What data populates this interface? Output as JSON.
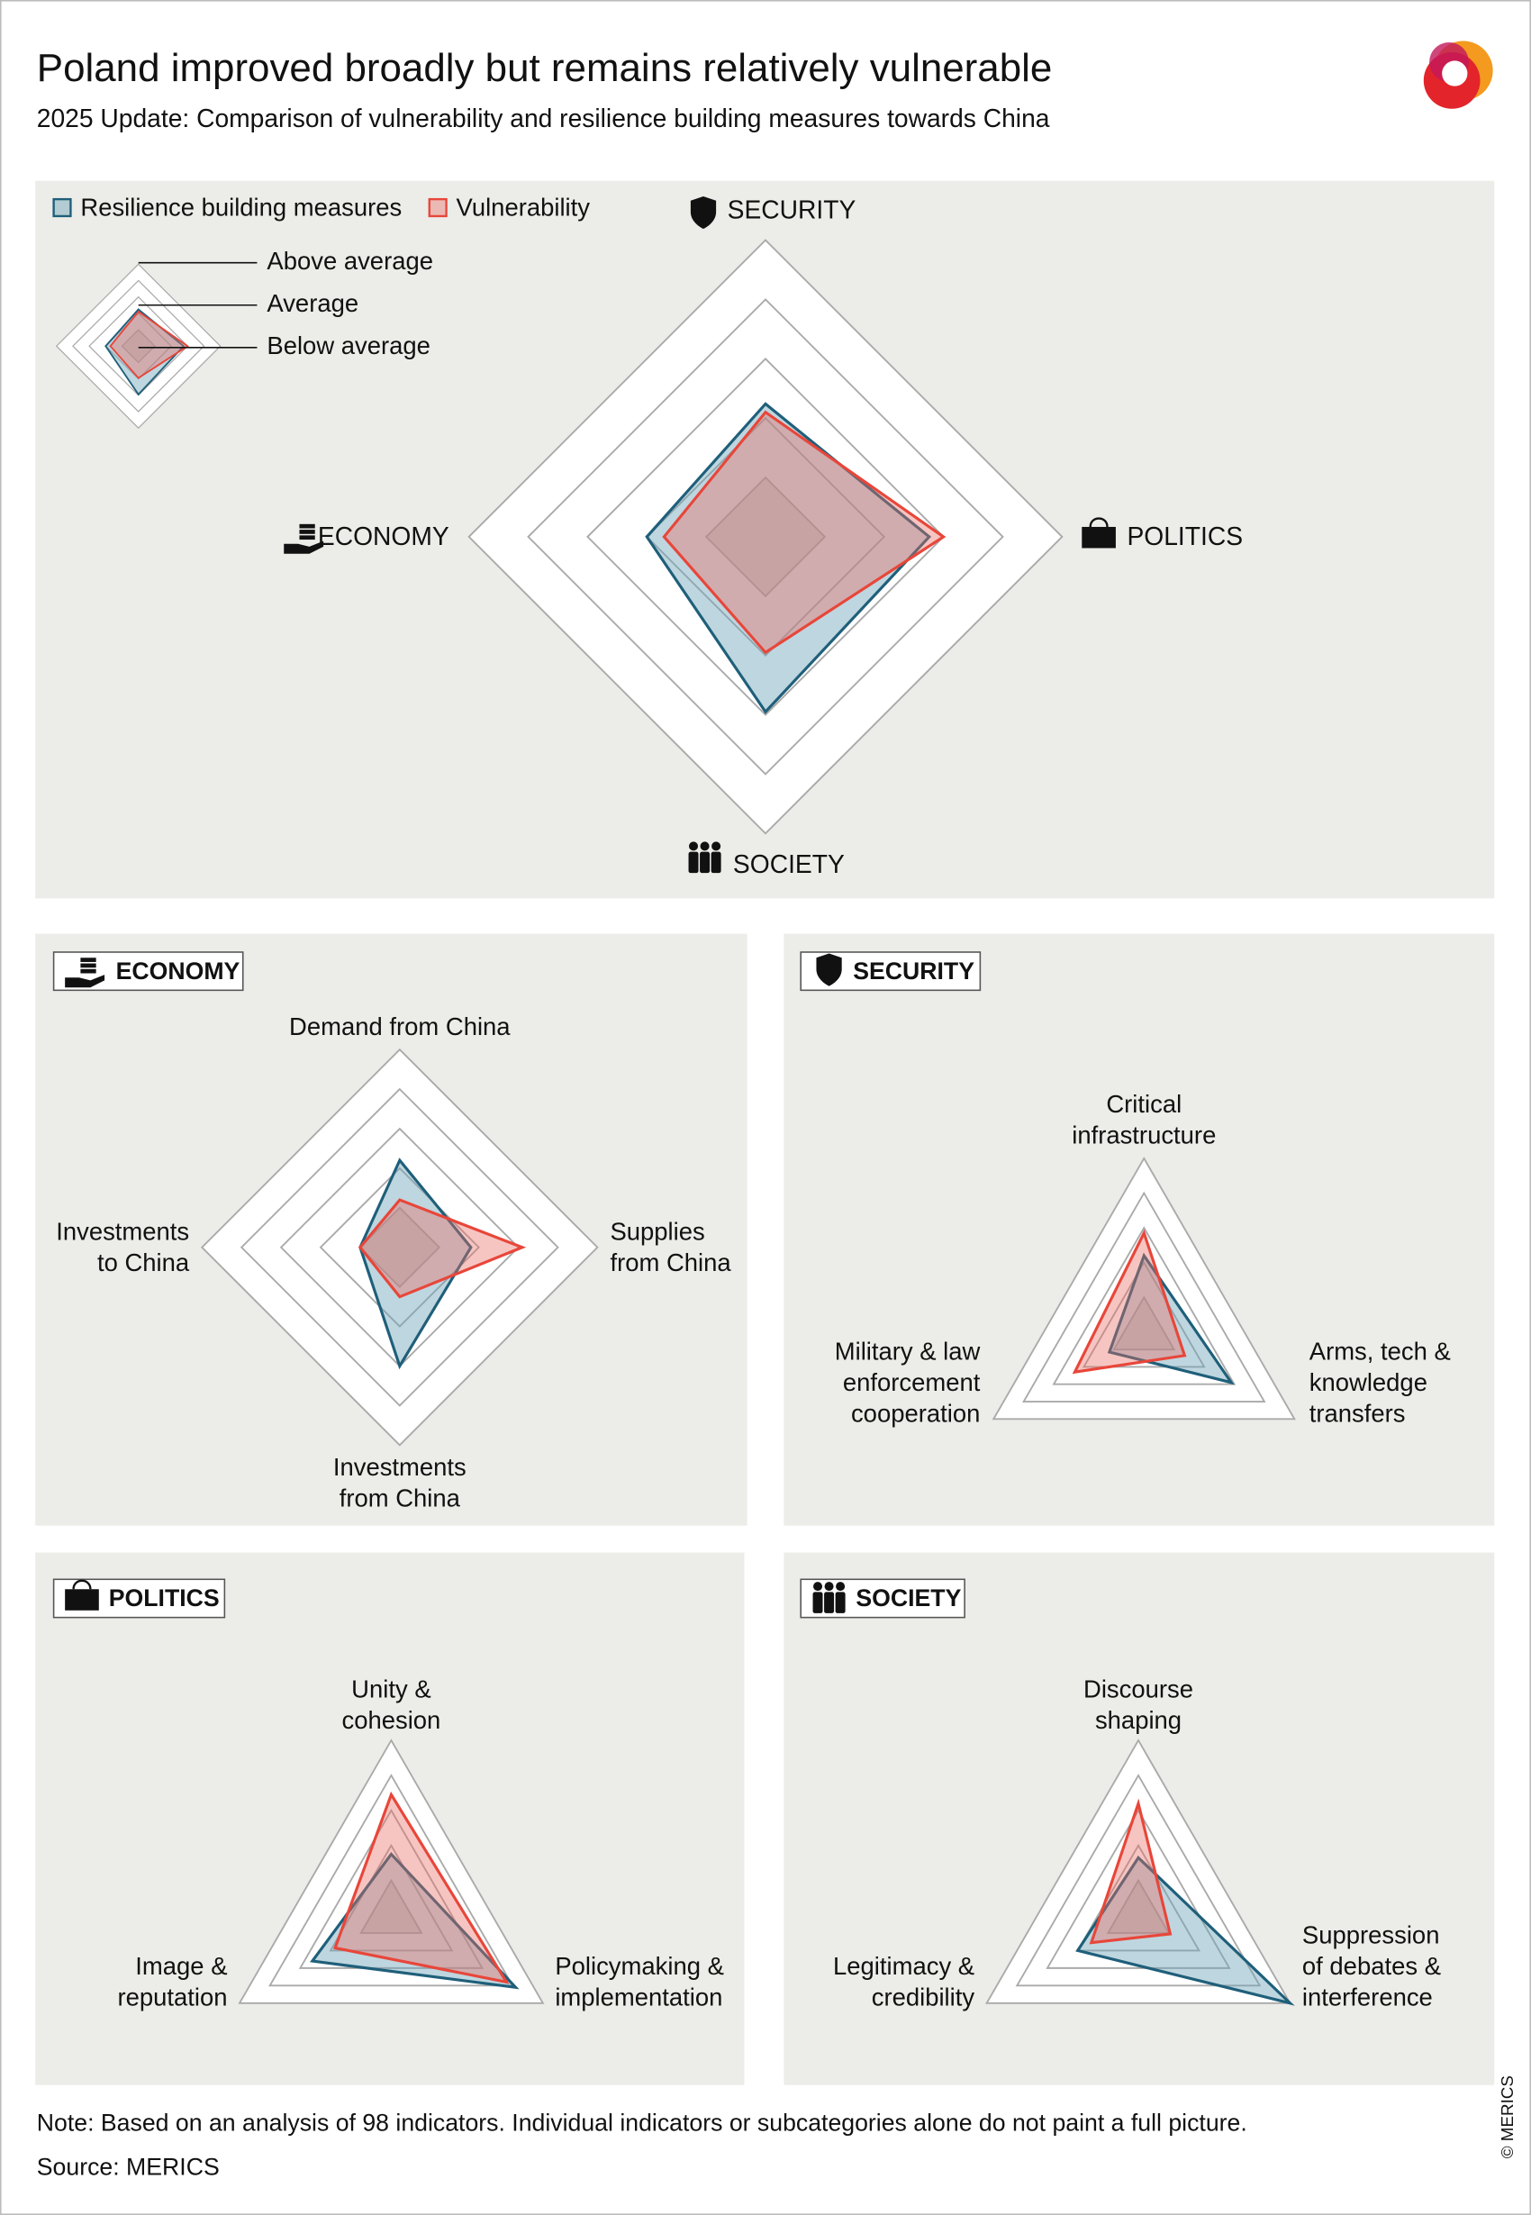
{
  "title": "Poland improved broadly but remains relatively vulnerable",
  "subtitle": "2025 Update: Comparison of vulnerability and resilience building measures towards China",
  "note": "Note: Based on an analysis of 98 indicators. Individual indicators or subcategories alone do not paint a full picture.",
  "source": "Source: MERICS",
  "copyright": "© MERICS",
  "chart_data": [
    {
      "type": "radar",
      "axes": [
        [
          "SECURITY"
        ],
        [
          "POLITICS"
        ],
        [
          "SOCIETY"
        ],
        [
          "ECONOMY"
        ]
      ],
      "series": [
        {
          "name": "Resilience building measures",
          "color": "#1f5f7a",
          "values": [
            2.24,
            2.76,
            2.95,
            2.0
          ]
        },
        {
          "name": "Vulnerability",
          "color": "#e8463a",
          "values": [
            2.1,
            3.0,
            1.95,
            1.71
          ]
        }
      ],
      "level_labels": [
        "Above average",
        "Average",
        "Below average"
      ],
      "rlim": [
        0,
        5
      ],
      "rticks": [
        1,
        2,
        3,
        4,
        5
      ]
    },
    {
      "type": "radar",
      "title": "ECONOMY",
      "axes": [
        [
          "Demand from China"
        ],
        [
          "Supplies",
          "from China"
        ],
        [
          "Investments",
          "from China"
        ],
        [
          "Investments",
          "to China"
        ]
      ],
      "series": [
        {
          "color": "#1f5f7a",
          "values": [
            2.2,
            1.8,
            3.0,
            1.0
          ]
        },
        {
          "color": "#e8463a",
          "values": [
            1.2,
            3.1,
            1.25,
            1.0
          ]
        }
      ],
      "rlim": [
        0,
        5
      ],
      "rticks": [
        1,
        2,
        3,
        4,
        5
      ]
    },
    {
      "type": "radar",
      "title": "SECURITY",
      "axes": [
        [
          "Critical",
          "infrastructure"
        ],
        [
          "Arms, tech &",
          "knowledge",
          "transfers"
        ],
        [
          "Military & law",
          "enforcement",
          "cooperation"
        ]
      ],
      "series": [
        {
          "color": "#1f5f7a",
          "values": [
            2.2,
            2.9,
            1.15
          ]
        },
        {
          "color": "#e8463a",
          "values": [
            2.85,
            1.35,
            2.3
          ]
        }
      ],
      "rlim": [
        0,
        5
      ],
      "rticks": [
        1,
        2,
        3,
        4,
        5
      ]
    },
    {
      "type": "radar",
      "title": "POLITICS",
      "axes": [
        [
          "Unity &",
          "cohesion"
        ],
        [
          "Policymaking &",
          "implementation"
        ],
        [
          "Image &",
          "reputation"
        ]
      ],
      "series": [
        {
          "color": "#1f5f7a",
          "values": [
            1.75,
            4.1,
            2.6
          ]
        },
        {
          "color": "#e8463a",
          "values": [
            3.45,
            3.8,
            1.85
          ]
        }
      ],
      "rlim": [
        0,
        5
      ],
      "rticks": [
        1,
        2,
        3,
        4,
        5
      ]
    },
    {
      "type": "radar",
      "title": "SOCIETY",
      "axes": [
        [
          "Discourse",
          "shaping"
        ],
        [
          "Suppression",
          "of debates &",
          "interference"
        ],
        [
          "Legitimacy &",
          "credibility"
        ]
      ],
      "series": [
        {
          "color": "#1f5f7a",
          "values": [
            1.65,
            5.0,
            2.0
          ]
        },
        {
          "color": "#e8463a",
          "values": [
            3.2,
            1.05,
            1.55
          ]
        }
      ],
      "rlim": [
        0,
        5
      ],
      "rticks": [
        1,
        2,
        3,
        4,
        5
      ]
    }
  ]
}
